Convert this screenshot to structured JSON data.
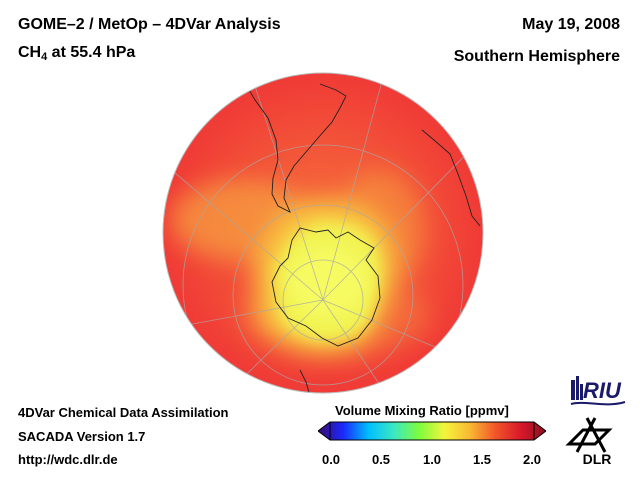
{
  "header": {
    "title_line1": "GOME–2 / MetOp – 4DVar Analysis",
    "title_line2_prefix": "CH",
    "title_line2_sub": "4",
    "title_line2_suffix": " at 55.4 hPa",
    "date": "May 19, 2008",
    "region": "Southern Hemisphere"
  },
  "footer": {
    "line1": "4DVar Chemical Data Assimilation",
    "line2": "SACADA Version 1.7",
    "line3": "http://wdc.dlr.de"
  },
  "colorbar": {
    "title": "Volume Mixing Ratio [ppmv]",
    "ticks": [
      "0.0",
      "0.5",
      "1.0",
      "1.5",
      "2.0"
    ],
    "stops": [
      "#3a0a6e",
      "#1a2aff",
      "#00bfff",
      "#3ce8c0",
      "#7dfc3e",
      "#f4f43c",
      "#f9b832",
      "#f2552a",
      "#d8192a",
      "#8a1020"
    ]
  },
  "map": {
    "projection": "orthographic",
    "hemisphere": "south",
    "low_value_color": "#f4f85a",
    "high_value_color": "#f24538"
  },
  "logos": {
    "riu_text": "RIU",
    "dlr_text": "DLR"
  }
}
